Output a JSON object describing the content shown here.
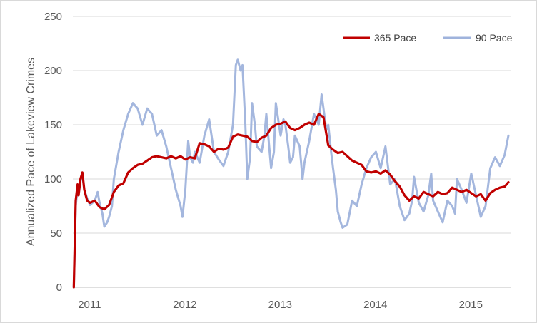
{
  "chart_data": {
    "type": "line",
    "title": "",
    "xlabel": "",
    "ylabel": "Annualized Pace of Lakeview Crimes",
    "ylim": [
      0,
      250
    ],
    "yticks": [
      0,
      50,
      100,
      150,
      200,
      250
    ],
    "xlim": [
      2010.87,
      2015.47
    ],
    "xticks": [
      {
        "label": "2011",
        "x": 2011.0
      },
      {
        "label": "2012",
        "x": 2012.0
      },
      {
        "label": "2013",
        "x": 2013.0
      },
      {
        "label": "2014",
        "x": 2014.0
      },
      {
        "label": "2015",
        "x": 2015.0
      }
    ],
    "grid": "horizontal",
    "legend": "top-right",
    "series": [
      {
        "name": "365 Pace",
        "color": "#c00000",
        "x": [
          2010.88,
          2010.89,
          2010.9,
          2010.92,
          2010.93,
          2010.95,
          2010.97,
          2010.99,
          2011.02,
          2011.05,
          2011.1,
          2011.15,
          2011.2,
          2011.25,
          2011.3,
          2011.35,
          2011.4,
          2011.45,
          2011.5,
          2011.55,
          2011.6,
          2011.65,
          2011.7,
          2011.75,
          2011.8,
          2011.85,
          2011.9,
          2011.95,
          2012.0,
          2012.05,
          2012.1,
          2012.15,
          2012.2,
          2012.25,
          2012.3,
          2012.35,
          2012.4,
          2012.45,
          2012.5,
          2012.55,
          2012.6,
          2012.65,
          2012.7,
          2012.75,
          2012.8,
          2012.85,
          2012.9,
          2012.95,
          2013.0,
          2013.05,
          2013.1,
          2013.15,
          2013.2,
          2013.25,
          2013.3,
          2013.35,
          2013.4,
          2013.45,
          2013.5,
          2013.55,
          2013.6,
          2013.65,
          2013.7,
          2013.75,
          2013.8,
          2013.85,
          2013.9,
          2013.95,
          2014.0,
          2014.05,
          2014.1,
          2014.15,
          2014.2,
          2014.25,
          2014.3,
          2014.35,
          2014.4,
          2014.45,
          2014.5,
          2014.55,
          2014.6,
          2014.65,
          2014.7,
          2014.75,
          2014.8,
          2014.85,
          2014.9,
          2014.95,
          2015.0,
          2015.05,
          2015.1,
          2015.15,
          2015.2,
          2015.25,
          2015.3,
          2015.35,
          2015.4,
          2015.44
        ],
        "values": [
          0,
          40,
          80,
          95,
          85,
          100,
          106,
          90,
          80,
          78,
          80,
          74,
          72,
          76,
          88,
          94,
          96,
          106,
          110,
          113,
          114,
          117,
          120,
          121,
          120,
          119,
          121,
          119,
          121,
          118,
          120,
          119,
          133,
          132,
          130,
          125,
          128,
          127,
          129,
          139,
          141,
          140,
          139,
          135,
          134,
          138,
          140,
          147,
          150,
          151,
          153,
          147,
          145,
          147,
          150,
          152,
          150,
          160,
          157,
          131,
          127,
          124,
          125,
          121,
          117,
          115,
          113,
          107,
          106,
          107,
          105,
          108,
          104,
          98,
          93,
          85,
          80,
          84,
          82,
          88,
          86,
          84,
          88,
          86,
          87,
          92,
          90,
          88,
          90,
          87,
          84,
          86,
          80,
          87,
          90,
          92,
          93,
          97
        ]
      },
      {
        "name": "90 Pace",
        "color": "#9fb3dc",
        "x": [
          2010.88,
          2010.89,
          2010.9,
          2010.92,
          2010.93,
          2010.95,
          2010.97,
          2010.99,
          2011.02,
          2011.05,
          2011.1,
          2011.13,
          2011.15,
          2011.18,
          2011.2,
          2011.23,
          2011.25,
          2011.28,
          2011.3,
          2011.35,
          2011.4,
          2011.45,
          2011.5,
          2011.55,
          2011.6,
          2011.65,
          2011.7,
          2011.75,
          2011.8,
          2011.85,
          2011.9,
          2011.95,
          2012.0,
          2012.02,
          2012.05,
          2012.08,
          2012.1,
          2012.13,
          2012.15,
          2012.2,
          2012.25,
          2012.3,
          2012.35,
          2012.4,
          2012.45,
          2012.5,
          2012.55,
          2012.58,
          2012.6,
          2012.63,
          2012.65,
          2012.68,
          2012.7,
          2012.73,
          2012.75,
          2012.78,
          2012.8,
          2012.85,
          2012.88,
          2012.9,
          2012.93,
          2012.95,
          2012.98,
          2013.0,
          2013.05,
          2013.08,
          2013.1,
          2013.13,
          2013.15,
          2013.18,
          2013.2,
          2013.25,
          2013.28,
          2013.3,
          2013.35,
          2013.4,
          2013.45,
          2013.48,
          2013.5,
          2013.53,
          2013.55,
          2013.58,
          2013.6,
          2013.63,
          2013.65,
          2013.68,
          2013.7,
          2013.75,
          2013.8,
          2013.85,
          2013.9,
          2013.95,
          2014.0,
          2014.05,
          2014.1,
          2014.15,
          2014.2,
          2014.25,
          2014.3,
          2014.35,
          2014.4,
          2014.43,
          2014.45,
          2014.5,
          2014.55,
          2014.6,
          2014.63,
          2014.65,
          2014.7,
          2014.75,
          2014.8,
          2014.85,
          2014.88,
          2014.9,
          2014.95,
          2015.0,
          2015.05,
          2015.1,
          2015.15,
          2015.2,
          2015.25,
          2015.3,
          2015.35,
          2015.4,
          2015.44
        ],
        "values": [
          0,
          35,
          75,
          92,
          85,
          98,
          104,
          90,
          82,
          76,
          80,
          88,
          78,
          68,
          56,
          60,
          65,
          75,
          100,
          125,
          145,
          160,
          170,
          165,
          150,
          165,
          160,
          140,
          145,
          130,
          110,
          90,
          75,
          65,
          90,
          135,
          120,
          115,
          125,
          115,
          140,
          155,
          125,
          118,
          112,
          125,
          150,
          205,
          210,
          200,
          205,
          150,
          100,
          120,
          170,
          150,
          130,
          125,
          140,
          160,
          130,
          110,
          125,
          170,
          140,
          155,
          150,
          130,
          115,
          120,
          140,
          130,
          100,
          115,
          135,
          160,
          150,
          178,
          165,
          145,
          150,
          125,
          110,
          90,
          70,
          60,
          55,
          58,
          80,
          75,
          95,
          110,
          120,
          125,
          110,
          130,
          95,
          100,
          75,
          62,
          68,
          80,
          102,
          78,
          70,
          85,
          105,
          80,
          70,
          60,
          80,
          75,
          68,
          100,
          90,
          78,
          105,
          85,
          65,
          75,
          110,
          120,
          112,
          122,
          140
        ]
      }
    ]
  }
}
